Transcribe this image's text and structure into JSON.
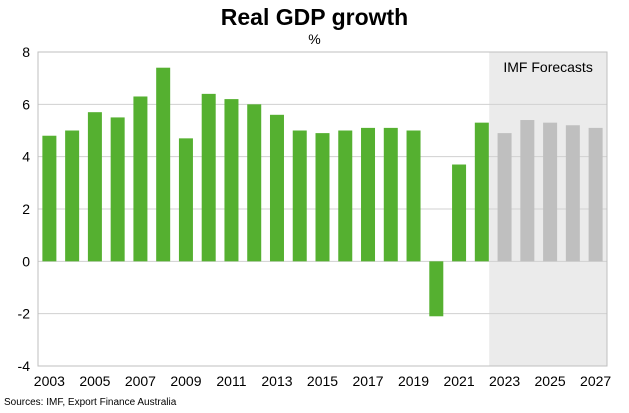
{
  "chart_data": {
    "type": "bar",
    "title": "Real GDP growth",
    "unit": "%",
    "years": [
      2003,
      2004,
      2005,
      2006,
      2007,
      2008,
      2009,
      2010,
      2011,
      2012,
      2013,
      2014,
      2015,
      2016,
      2017,
      2018,
      2019,
      2020,
      2021,
      2022,
      2023,
      2024,
      2025,
      2026,
      2027
    ],
    "values": [
      4.8,
      5.0,
      5.7,
      5.5,
      6.3,
      7.4,
      4.7,
      6.4,
      6.2,
      6.0,
      5.6,
      5.0,
      4.9,
      5.0,
      5.1,
      5.1,
      5.0,
      -2.1,
      3.7,
      5.3,
      4.9,
      5.4,
      5.3,
      5.2,
      5.1
    ],
    "forecast_start_year": 2023,
    "ylim": [
      -4,
      8
    ],
    "yticks": [
      "-4",
      "-2",
      "0",
      "2",
      "4",
      "6",
      "8"
    ],
    "xtick_labels": [
      "2003",
      "2005",
      "2007",
      "2009",
      "2011",
      "2013",
      "2015",
      "2017",
      "2019",
      "2021",
      "2023",
      "2025",
      "2027"
    ],
    "forecast_label": "IMF Forecasts",
    "source": "Sources: IMF, Export Finance Australia",
    "colors": {
      "actual": "#55b030",
      "forecast": "#bfbfbf",
      "forecast_bg": "#ebebeb",
      "grid": "#d0d0d0"
    }
  }
}
